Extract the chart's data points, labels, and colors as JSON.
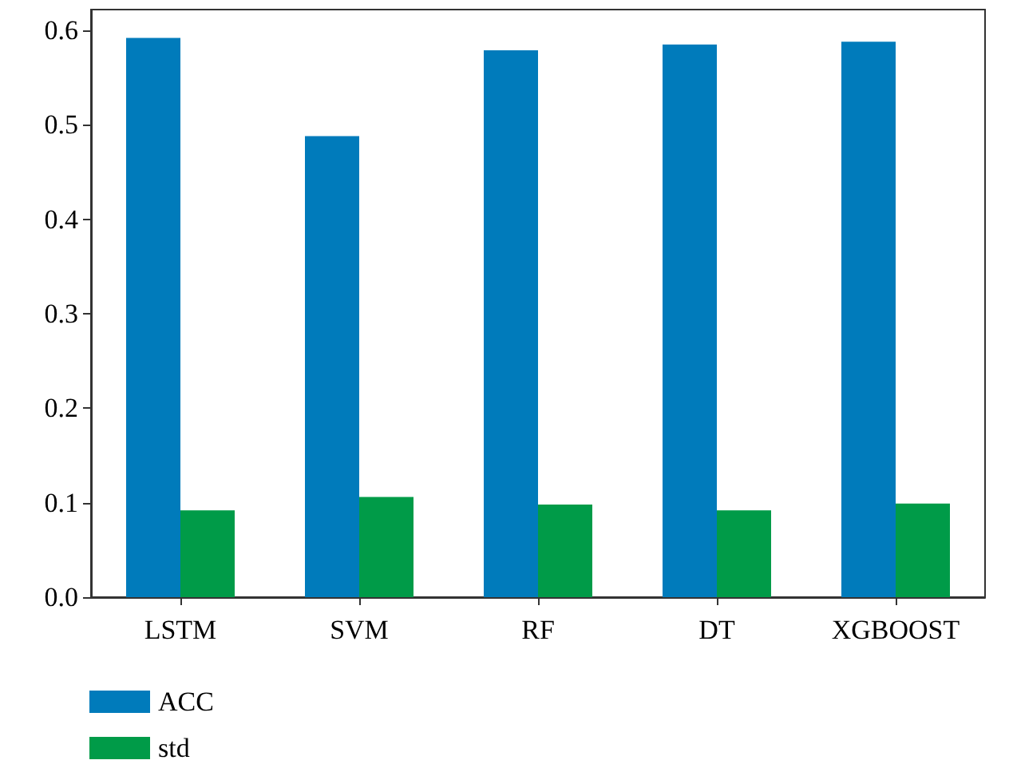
{
  "chart_data": {
    "type": "bar",
    "categories": [
      "LSTM",
      "SVM",
      "RF",
      "DT",
      "XGBOOST"
    ],
    "series": [
      {
        "name": "ACC",
        "color": "#007bbb",
        "values": [
          0.592,
          0.488,
          0.579,
          0.585,
          0.588
        ]
      },
      {
        "name": "std",
        "color": "#009b48",
        "values": [
          0.092,
          0.106,
          0.098,
          0.092,
          0.099
        ]
      }
    ],
    "ylim": [
      0,
      0.622
    ],
    "yticks": [
      {
        "value": 0,
        "label": "0.0"
      },
      0.1,
      0.2,
      0.3,
      0.4,
      0.5,
      0.6
    ],
    "grid": false,
    "legend": "bottom left"
  }
}
